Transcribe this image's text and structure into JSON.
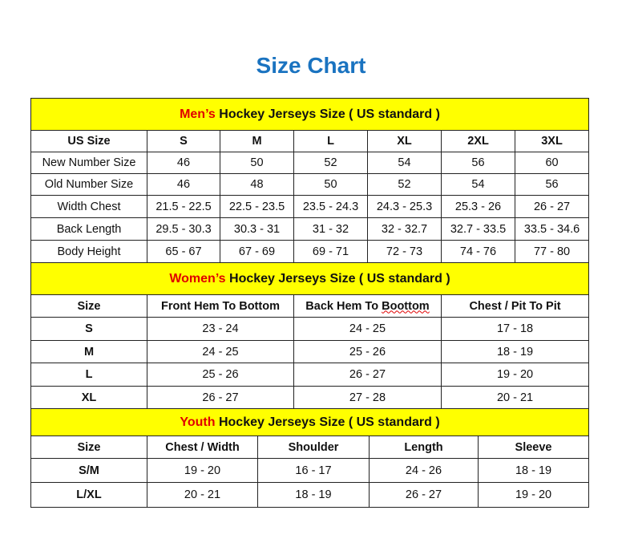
{
  "title": "Size Chart",
  "colors": {
    "title": "#1a73c0",
    "band": "#ffff00",
    "highlight": "#e00000"
  },
  "men": {
    "heading_highlight": "Men’s",
    "heading_rest": " Hockey Jerseys Size ( US standard )",
    "headers": [
      "US Size",
      "S",
      "M",
      "L",
      "XL",
      "2XL",
      "3XL"
    ],
    "rows": [
      [
        "New Number Size",
        "46",
        "50",
        "52",
        "54",
        "56",
        "60"
      ],
      [
        "Old Number Size",
        "46",
        "48",
        "50",
        "52",
        "54",
        "56"
      ],
      [
        "Width Chest",
        "21.5 - 22.5",
        "22.5 - 23.5",
        "23.5 - 24.3",
        "24.3 - 25.3",
        "25.3 - 26",
        "26 - 27"
      ],
      [
        "Back Length",
        "29.5 - 30.3",
        "30.3 - 31",
        "31 - 32",
        "32 - 32.7",
        "32.7 - 33.5",
        "33.5 - 34.6"
      ],
      [
        "Body Height",
        "65 - 67",
        "67 - 69",
        "69 - 71",
        "72 - 73",
        "74 - 76",
        "77 - 80"
      ]
    ]
  },
  "women": {
    "heading_highlight": "Women’s",
    "heading_rest": " Hockey Jerseys Size ( US standard )",
    "headers": [
      "Size",
      "Front Hem To Bottom",
      "Back Hem To Boottom",
      "Chest / Pit To Pit"
    ],
    "rows": [
      [
        "S",
        "23 - 24",
        "24 - 25",
        "17 - 18"
      ],
      [
        "M",
        "24 - 25",
        "25 - 26",
        "18 - 19"
      ],
      [
        "L",
        "25 - 26",
        "26 - 27",
        "19 - 20"
      ],
      [
        "XL",
        "26 - 27",
        "27 - 28",
        "20 - 21"
      ]
    ]
  },
  "youth": {
    "heading_highlight": "Youth",
    "heading_rest": " Hockey Jerseys Size ( US standard )",
    "headers": [
      "Size",
      "Chest / Width",
      "Shoulder",
      "Length",
      "Sleeve"
    ],
    "rows": [
      [
        "S/M",
        "19 - 20",
        "16 - 17",
        "24 - 26",
        "18 - 19"
      ],
      [
        "L/XL",
        "20 - 21",
        "18 - 19",
        "26 - 27",
        "19 - 20"
      ]
    ]
  }
}
